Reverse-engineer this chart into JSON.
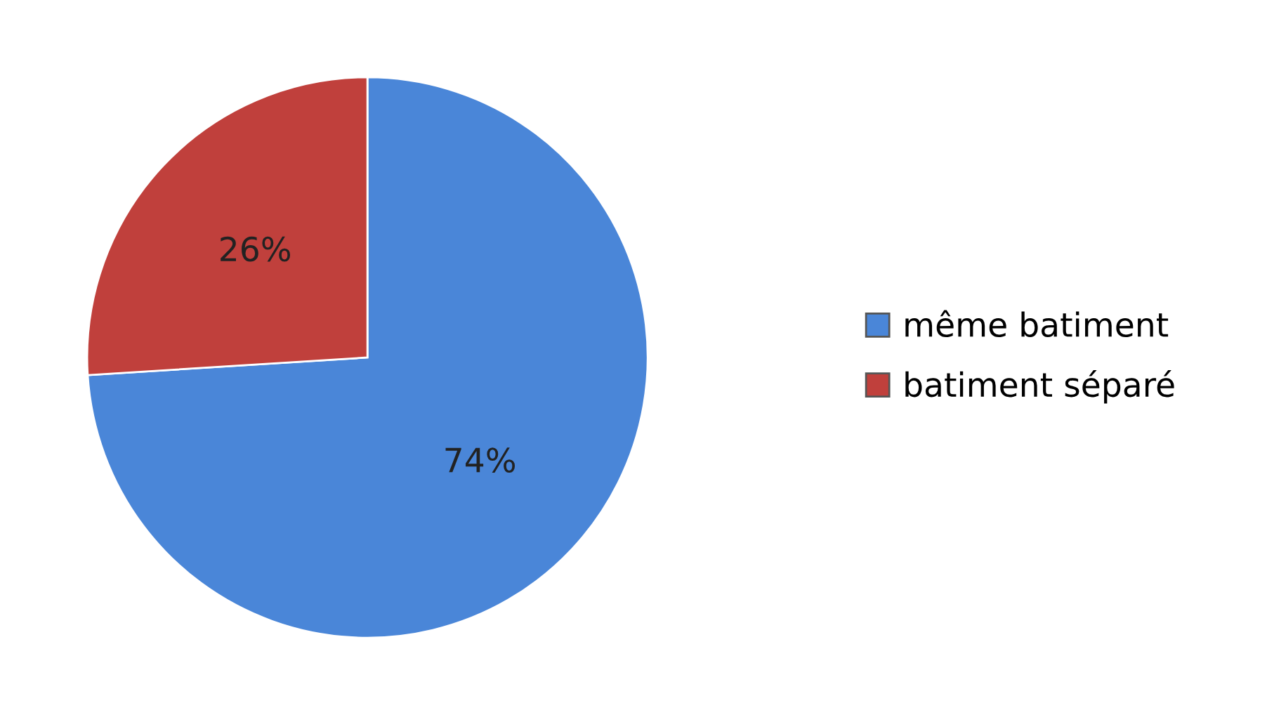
{
  "chart_data": {
    "type": "pie",
    "categories": [
      "même batiment",
      "batiment séparé"
    ],
    "values": [
      74,
      26
    ],
    "colors": [
      "#4a86d8",
      "#c0403c"
    ],
    "value_labels": [
      "74%",
      "26%"
    ],
    "legend": "right"
  }
}
